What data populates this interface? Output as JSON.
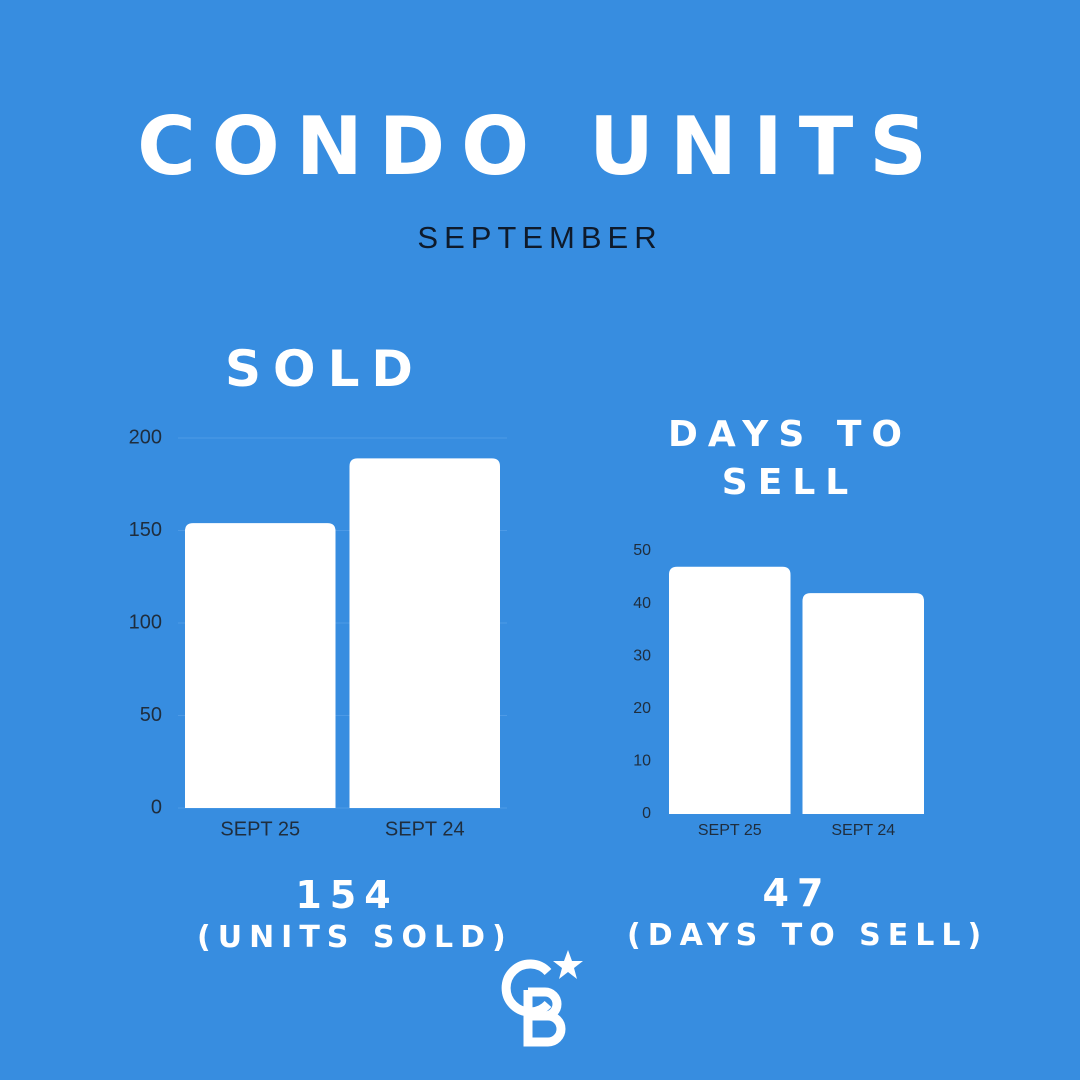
{
  "header": {
    "title": "CONDO UNITS",
    "subtitle": "SEPTEMBER"
  },
  "chart_data": [
    {
      "type": "bar",
      "title": "SOLD",
      "categories": [
        "SEPT 25",
        "SEPT 24"
      ],
      "values": [
        154,
        189
      ],
      "color": "#ffffff",
      "ylim": [
        0,
        200
      ],
      "yticks": [
        0,
        50,
        100,
        150,
        200
      ],
      "grid": true,
      "annotations": [
        "154",
        "(UNITS SOLD)"
      ]
    },
    {
      "type": "bar",
      "title": "DAYS TO SELL",
      "categories": [
        "SEPT 25",
        "SEPT 24"
      ],
      "values": [
        47,
        42
      ],
      "color": "#ffffff",
      "ylim": [
        0,
        50
      ],
      "yticks": [
        0,
        10,
        20,
        30,
        40,
        50
      ],
      "grid": false,
      "annotations": [
        "47",
        "(DAYS TO SELL)"
      ]
    }
  ]
}
